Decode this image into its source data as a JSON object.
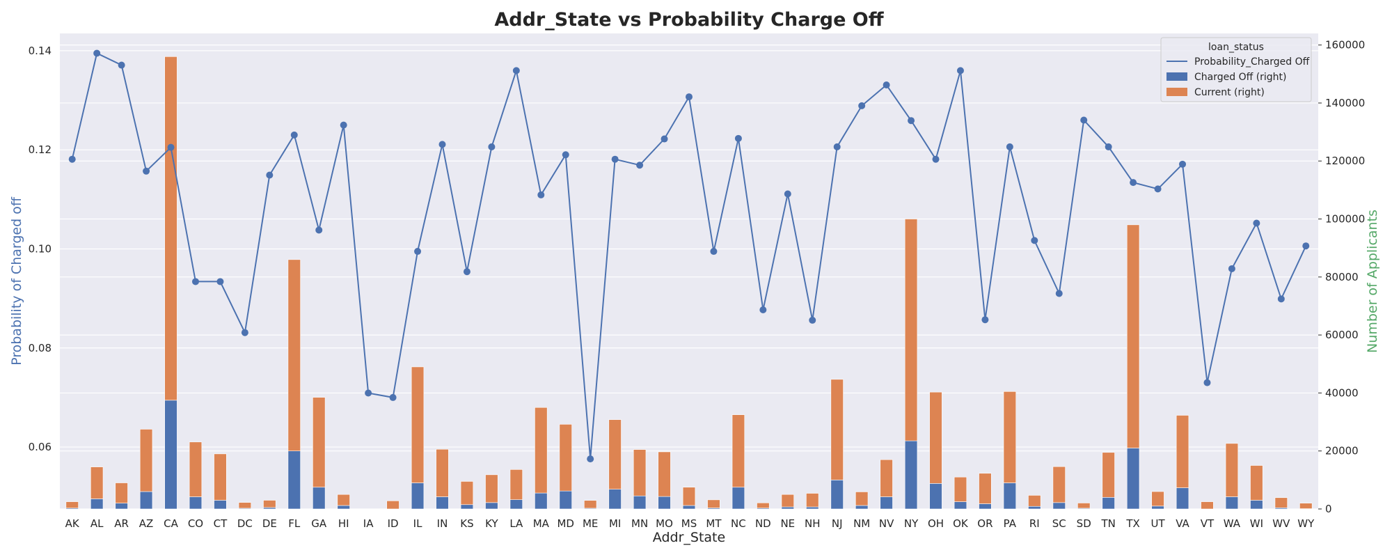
{
  "chart_data": {
    "type": "bar",
    "title": "Addr_State vs Probability Charge Off",
    "xlabel": "Addr_State",
    "ylabel": "Probability of Charged off",
    "y2label": "Number of Applicants",
    "ylim": [
      0.0475,
      0.1435
    ],
    "y2lim": [
      0,
      164000
    ],
    "yticks": [
      "0.06",
      "0.08",
      "0.10",
      "0.12",
      "0.14"
    ],
    "y2ticks": [
      "0",
      "20000",
      "40000",
      "60000",
      "80000",
      "100000",
      "120000",
      "140000",
      "160000"
    ],
    "grid": true,
    "legend_title": "loan_status",
    "legend_position": "top-right",
    "categories": [
      "AK",
      "AL",
      "AR",
      "AZ",
      "CA",
      "CO",
      "CT",
      "DC",
      "DE",
      "FL",
      "GA",
      "HI",
      "IA",
      "ID",
      "IL",
      "IN",
      "KS",
      "KY",
      "LA",
      "MA",
      "MD",
      "ME",
      "MI",
      "MN",
      "MO",
      "MS",
      "MT",
      "NC",
      "ND",
      "NE",
      "NH",
      "NJ",
      "NM",
      "NV",
      "NY",
      "OH",
      "OK",
      "OR",
      "PA",
      "RI",
      "SC",
      "SD",
      "TN",
      "TX",
      "UT",
      "VA",
      "VT",
      "WA",
      "WI",
      "WV",
      "WY"
    ],
    "line_series": {
      "name": "Probability_Charged Off",
      "axis": "left",
      "color": "#4c72b0",
      "values": [
        0.1181,
        0.1395,
        0.1371,
        0.1157,
        0.1205,
        0.0934,
        0.0934,
        0.0831,
        0.1149,
        0.123,
        0.1038,
        0.125,
        0.0709,
        0.07,
        0.0995,
        0.1211,
        0.0954,
        0.1206,
        0.136,
        0.1109,
        0.119,
        0.0576,
        0.1181,
        0.1169,
        0.1222,
        0.1307,
        0.0995,
        0.1223,
        0.0877,
        0.1111,
        0.0856,
        0.1206,
        0.1289,
        0.1331,
        0.1259,
        0.1181,
        0.136,
        0.0857,
        0.1206,
        0.1017,
        0.091,
        0.126,
        0.1206,
        0.1134,
        0.1121,
        0.1171,
        0.073,
        0.096,
        0.1052,
        0.0899,
        0.1006
      ]
    },
    "bar_series": [
      {
        "name": "Charged Off (right)",
        "axis": "right",
        "color": "#4c72b0",
        "values": [
          300,
          3500,
          2000,
          6000,
          37500,
          4200,
          3000,
          250,
          500,
          20000,
          7500,
          1200,
          0,
          0,
          9000,
          4200,
          1500,
          2200,
          3200,
          5500,
          6200,
          250,
          6800,
          4500,
          4300,
          1200,
          350,
          7500,
          300,
          700,
          700,
          10000,
          1200,
          4200,
          23500,
          8800,
          2500,
          1800,
          9000,
          900,
          2200,
          250,
          4000,
          21000,
          1000,
          7300,
          0,
          4200,
          3000,
          400,
          100
        ]
      },
      {
        "name": "Current (right)",
        "axis": "right",
        "color": "#dd8452",
        "values": [
          2200,
          11000,
          7000,
          21500,
          118500,
          18900,
          16000,
          2000,
          2500,
          66000,
          31000,
          3800,
          0,
          2800,
          40000,
          16400,
          8000,
          9600,
          10400,
          29500,
          23000,
          2700,
          24000,
          16000,
          15400,
          6300,
          2800,
          25000,
          1800,
          4300,
          4700,
          34700,
          4700,
          12800,
          76500,
          31500,
          8500,
          10500,
          31500,
          3800,
          12400,
          1800,
          15500,
          77000,
          5000,
          25000,
          2500,
          18400,
          12000,
          3500,
          1900
        ]
      }
    ]
  }
}
